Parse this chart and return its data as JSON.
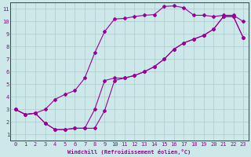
{
  "xlabel": "Windchill (Refroidissement éolien,°C)",
  "bg_color": "#cce8e8",
  "grid_color": "#aacccc",
  "line_color": "#990099",
  "xlim": [
    -0.5,
    23.5
  ],
  "ylim": [
    0.5,
    11.5
  ],
  "xticks": [
    0,
    1,
    2,
    3,
    4,
    5,
    6,
    7,
    8,
    9,
    10,
    11,
    12,
    13,
    14,
    15,
    16,
    17,
    18,
    19,
    20,
    21,
    22,
    23
  ],
  "yticks": [
    1,
    2,
    3,
    4,
    5,
    6,
    7,
    8,
    9,
    10,
    11
  ],
  "curve1_x": [
    0,
    1,
    2,
    3,
    4,
    5,
    6,
    7,
    8,
    9,
    10,
    11,
    12,
    13,
    14,
    15,
    16,
    17,
    18,
    19,
    20,
    21,
    22,
    23
  ],
  "curve1_y": [
    3.0,
    2.6,
    2.7,
    3.0,
    3.8,
    4.2,
    4.5,
    5.5,
    7.5,
    9.2,
    10.2,
    10.25,
    10.4,
    10.5,
    10.55,
    11.2,
    11.25,
    11.1,
    10.5,
    10.5,
    10.4,
    10.5,
    10.5,
    10.0
  ],
  "curve2_x": [
    0,
    1,
    2,
    3,
    4,
    5,
    6,
    7,
    8,
    9,
    10,
    11,
    12,
    13,
    14,
    15,
    16,
    17,
    18,
    19,
    20,
    21,
    22,
    23
  ],
  "curve2_y": [
    3.0,
    2.6,
    2.7,
    1.9,
    1.4,
    1.4,
    1.5,
    1.5,
    1.5,
    2.9,
    5.3,
    5.5,
    5.7,
    6.0,
    6.4,
    7.0,
    7.8,
    8.3,
    8.6,
    8.9,
    9.4,
    10.4,
    10.4,
    8.7
  ],
  "curve3_x": [
    0,
    1,
    2,
    3,
    4,
    5,
    6,
    7,
    8,
    9,
    10,
    11,
    12,
    13,
    14,
    15,
    16,
    17,
    18,
    19,
    20,
    21,
    22,
    23
  ],
  "curve3_y": [
    3.0,
    2.6,
    2.7,
    1.9,
    1.4,
    1.4,
    1.5,
    1.5,
    3.0,
    5.3,
    5.5,
    5.5,
    5.7,
    6.0,
    6.4,
    7.0,
    7.8,
    8.3,
    8.6,
    8.9,
    9.4,
    10.4,
    10.4,
    8.7
  ]
}
